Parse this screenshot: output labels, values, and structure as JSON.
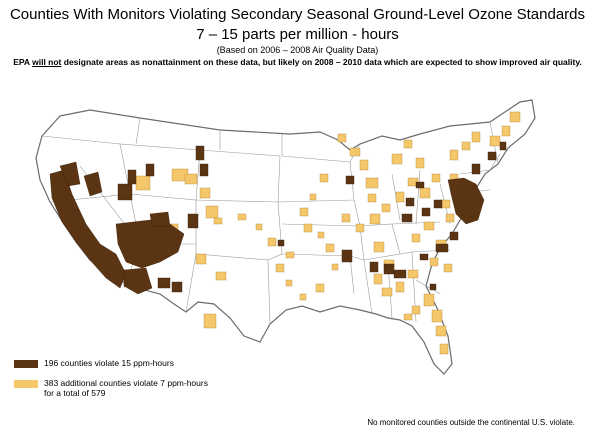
{
  "title": "Counties With Monitors Violating Secondary Seasonal Ground-Level Ozone Standards",
  "subtitle": "7 – 15 parts per million - hours",
  "basis": "(Based on 2006 – 2008 Air Quality Data)",
  "note": {
    "prefix": "EPA ",
    "underlined": "will not",
    "suffix": " designate areas as nonattainment on these data, but likely on 2008 – 2010 data which are expected to show improved air quality."
  },
  "legend": [
    {
      "label": "196 counties violate 15 ppm-hours",
      "color": "#5b3413"
    },
    {
      "label": "383 additional counties violate 7 ppm-hours",
      "label2": "for a total of 579",
      "color": "#f4c76a"
    }
  ],
  "footnote": "No monitored counties outside the continental U.S. violate.",
  "colors": {
    "severe": "#5b3413",
    "moderate": "#f4c76a",
    "land": "#ffffff",
    "border": "#8a8a8a"
  }
}
